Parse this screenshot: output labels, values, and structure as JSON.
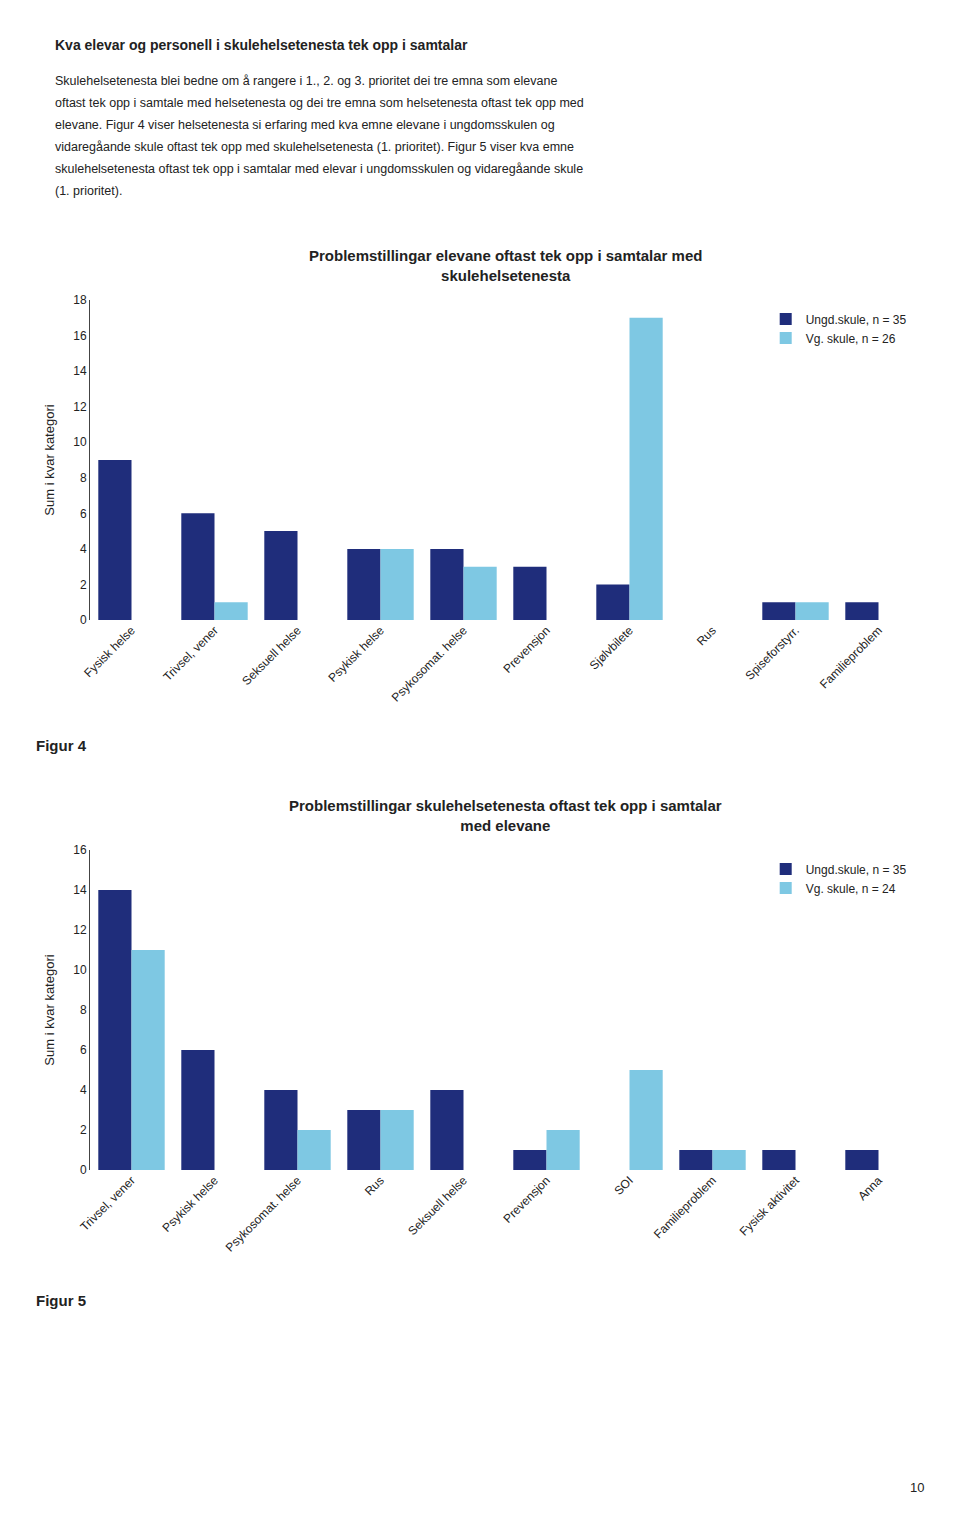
{
  "chart_data": [
    {
      "type": "bar",
      "title": "Problemstillingar elevane oftast tek opp i samtalar med",
      "subtitle": "skulehelsetenesta",
      "ylabel": "Sum i kvar kategori",
      "categories": [
        "Fysisk helse",
        "Trivsel, vener",
        "Seksuell helse",
        "Psykisk helse",
        "Psykosomat. helse",
        "Prevensjon",
        "Sjølvbilete",
        "Rus",
        "Spiseforstyrr.",
        "Familieproblem"
      ],
      "series": [
        {
          "name": "Ungd.skule, n = 35",
          "color": "#1F2D7B",
          "values": [
            9,
            6,
            5,
            4,
            4,
            3,
            2,
            0,
            1,
            1
          ]
        },
        {
          "name": "Vg. skule, n = 26",
          "color": "#7EC8E3",
          "values": [
            0,
            1,
            0,
            4,
            3,
            0,
            17,
            0,
            1,
            0
          ]
        }
      ],
      "ylim": [
        0,
        18
      ],
      "yticks": [
        0,
        2,
        4,
        6,
        8,
        10,
        12,
        14,
        16,
        18
      ],
      "grid": false,
      "legend": "upper right",
      "annotations": [
        "Kva elevar og personell i skulehelsetenesta tek opp i samtalar",
        "Skulehelsetenesta blei bedne om å rangere i 1., 2. og 3. prioritet dei tre emna som elevane",
        "oftast tek opp i samtale med helsetenesta og dei tre emna som helsetenesta oftast tek opp med",
        "elevane. Figur 4 viser helsetenesta si erfaring med kva emne elevane i ungdomsskulen og",
        "vidaregåande skule oftast tek opp med skulehelsetenesta (1. prioritet). Figur 5 viser kva emne",
        "skulehelsetenesta oftast tek opp i samtalar med elevar i ungdomsskulen og vidaregåande skule",
        "(1. prioritet).",
        "Figur 4"
      ]
    },
    {
      "type": "bar",
      "title": "Problemstillingar skulehelsetenesta oftast tek opp i samtalar",
      "subtitle": "med elevane",
      "ylabel": "Sum i kvar kategori",
      "categories": [
        "Trivsel, vener",
        "Psykisk helse",
        "Psykosomat. helse",
        "Rus",
        "Seksuell helse",
        "Prevensjon",
        "SOI",
        "Familieproblem",
        "Fysisk aktivitet",
        "Anna"
      ],
      "series": [
        {
          "name": "Ungd.skule, n = 35",
          "color": "#1F2D7B",
          "values": [
            14,
            6,
            4,
            3,
            4,
            1,
            0,
            1,
            1,
            1
          ]
        },
        {
          "name": "Vg. skule, n = 24",
          "color": "#7EC8E3",
          "values": [
            11,
            0,
            2,
            3,
            0,
            2,
            5,
            1,
            0,
            0
          ]
        }
      ],
      "ylim": [
        0,
        16
      ],
      "yticks": [
        0,
        2,
        4,
        6,
        8,
        10,
        12,
        14,
        16
      ],
      "grid": false,
      "legend": "upper right",
      "annotations": [
        "Figur 5",
        "10"
      ]
    }
  ]
}
